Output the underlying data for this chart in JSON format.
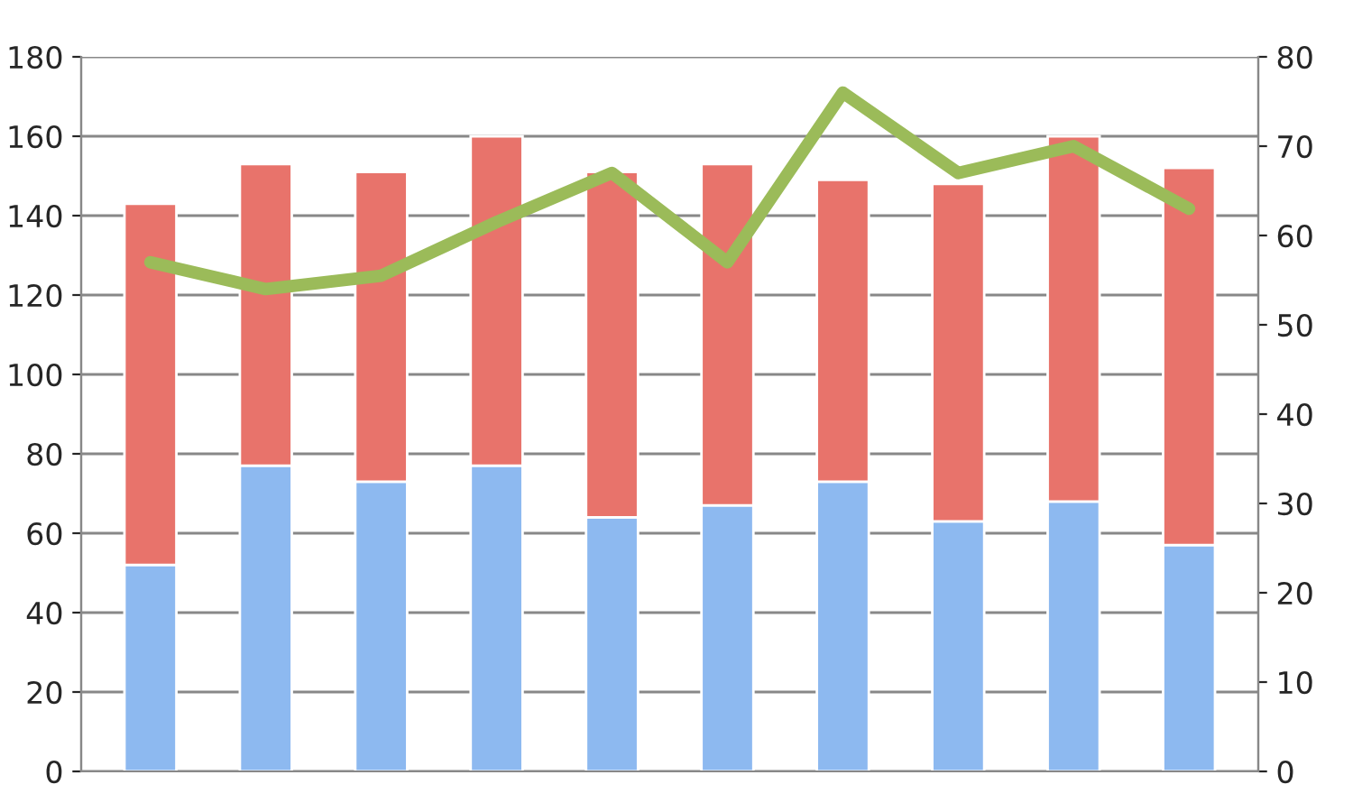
{
  "chart_data": {
    "type": "bar",
    "stacked": true,
    "categories": [
      null,
      null,
      null,
      null,
      null,
      null,
      null,
      null,
      null,
      null
    ],
    "series": [
      {
        "color": "#8db9f0",
        "values": [
          52,
          77,
          73,
          77,
          64,
          67,
          73,
          63,
          68,
          57
        ]
      },
      {
        "color": "#e8736b",
        "values": [
          91,
          76,
          78,
          83,
          87,
          86,
          76,
          85,
          92,
          95
        ]
      },
      {
        "type": "line",
        "axis": "y2",
        "color": "#9bbb59",
        "values": [
          57,
          54,
          55.5,
          61.5,
          67,
          57,
          76,
          67,
          70,
          63
        ]
      }
    ],
    "ylim": [
      0,
      180
    ],
    "yticks": [
      0,
      20,
      40,
      60,
      80,
      100,
      120,
      140,
      160,
      180
    ],
    "y2lim": [
      0,
      80
    ],
    "y2ticks": [
      0,
      10,
      20,
      30,
      40,
      50,
      60,
      70,
      80
    ],
    "grid": "y",
    "marker": "none",
    "line_style": "solid"
  }
}
